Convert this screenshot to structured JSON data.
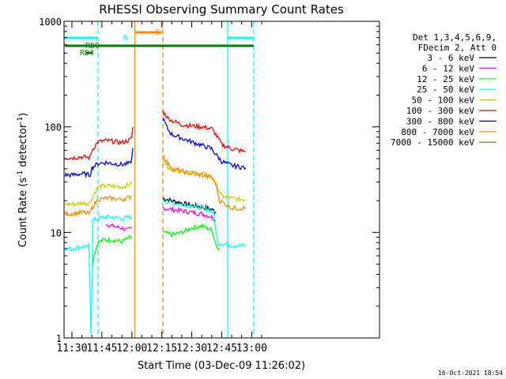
{
  "chart_data": {
    "type": "line",
    "title": "RHESSI Observing Summary Count Rates",
    "xlabel": "Start Time (03-Dec-09 11:26:02)",
    "ylabel": "Count Rate (s⁻¹ detector⁻¹)",
    "ylabel_parts": [
      "Count Rate (s",
      "-1",
      " detector",
      "-1",
      ")"
    ],
    "yscale": "log",
    "xlim": [
      26.03,
      184.0
    ],
    "ylim": [
      1,
      1000
    ],
    "x_units": "minutes after 11:00 UT",
    "x_tick_labels": [
      "11:30",
      "11:45",
      "12:00",
      "12:15",
      "12:30",
      "12:45",
      "13:00"
    ],
    "x_ticks": [
      30,
      45,
      60,
      75,
      90,
      105,
      120
    ],
    "y_tick_labels": [
      "1",
      "10",
      "100",
      "1000"
    ],
    "y_ticks": [
      1,
      10,
      100,
      1000
    ],
    "timestamp": "16-Oct-2021 18:54",
    "legend": {
      "header": [
        "Det 1,3,4,5,6,9,",
        "FDecim 2, Att 0"
      ],
      "placement": "right, outside"
    },
    "series": [
      {
        "name": "3 - 6 keV",
        "color": "#000000",
        "segments": [
          [
            [
              75.5,
              21
            ],
            [
              80,
              20
            ],
            [
              85,
              19
            ],
            [
              90,
              18
            ],
            [
              95,
              17.5
            ],
            [
              100,
              16.5
            ],
            [
              102,
              15.5
            ]
          ]
        ]
      },
      {
        "name": "6 - 12 keV",
        "color": "#ff00ff",
        "segments": [
          [
            [
              47,
              12
            ],
            [
              50,
              11.5
            ],
            [
              55,
              11
            ],
            [
              58,
              10.5
            ],
            [
              60,
              11
            ]
          ],
          [
            [
              75.5,
              17
            ],
            [
              80,
              16.5
            ],
            [
              85,
              16
            ],
            [
              90,
              15.5
            ],
            [
              95,
              15
            ],
            [
              100,
              14
            ],
            [
              102,
              13
            ]
          ]
        ]
      },
      {
        "name": "12 - 25 keV",
        "color": "#00ff00",
        "segments": [
          [
            [
              40,
              4.5
            ],
            [
              41,
              6
            ],
            [
              43,
              8
            ],
            [
              46,
              8.5
            ],
            [
              50,
              8.5
            ],
            [
              55,
              8.2
            ],
            [
              60,
              9
            ]
          ],
          [
            [
              75.5,
              10
            ],
            [
              80,
              9.5
            ],
            [
              85,
              10
            ],
            [
              90,
              11
            ],
            [
              95,
              11.5
            ],
            [
              100,
              10.5
            ],
            [
              102,
              8
            ],
            [
              103,
              7
            ],
            [
              104,
              7
            ]
          ]
        ]
      },
      {
        "name": "25 - 50 keV",
        "color": "#00ffff",
        "segments": [
          [
            [
              26.5,
              7
            ],
            [
              30,
              7
            ],
            [
              35,
              7.3
            ],
            [
              38.5,
              7.5
            ],
            [
              39,
              3
            ],
            [
              39.5,
              1.1
            ],
            [
              40,
              3
            ],
            [
              40.5,
              13
            ],
            [
              43,
              13.5
            ],
            [
              47,
              14
            ],
            [
              50,
              14
            ],
            [
              55,
              13.5
            ],
            [
              60,
              14
            ]
          ],
          [
            [
              75.5,
              20
            ],
            [
              80,
              19
            ],
            [
              85,
              18.5
            ],
            [
              90,
              18
            ],
            [
              95,
              17
            ],
            [
              100,
              16
            ],
            [
              101,
              15
            ],
            [
              102,
              11
            ],
            [
              103,
              8
            ],
            [
              110,
              7.5
            ],
            [
              117,
              7.5
            ]
          ]
        ]
      },
      {
        "name": "50 - 100 keV",
        "color": "#cccc00",
        "segments": [
          [
            [
              26.5,
              18.5
            ],
            [
              30,
              18.5
            ],
            [
              35,
              19
            ],
            [
              39,
              19
            ],
            [
              40,
              21
            ],
            [
              43,
              27
            ],
            [
              47,
              27.5
            ],
            [
              50,
              27.5
            ],
            [
              55,
              27
            ],
            [
              60,
              29
            ]
          ],
          [
            [
              75.5,
              48
            ],
            [
              78,
              42
            ],
            [
              80,
              40
            ],
            [
              85,
              38
            ],
            [
              90,
              37
            ],
            [
              95,
              36
            ],
            [
              100,
              34
            ],
            [
              102,
              29
            ],
            [
              105,
              22
            ],
            [
              110,
              21
            ],
            [
              117,
              20.5
            ]
          ]
        ]
      },
      {
        "name": "100 - 300 keV",
        "color": "#ff0000",
        "segments": [
          [
            [
              26.5,
              51
            ],
            [
              30,
              51
            ],
            [
              35,
              52
            ],
            [
              39,
              51
            ],
            [
              40,
              60
            ],
            [
              43,
              72
            ],
            [
              47,
              74
            ],
            [
              50,
              73
            ],
            [
              55,
              71
            ],
            [
              59,
              75
            ],
            [
              60,
              80
            ],
            [
              60.5,
              100
            ]
          ],
          [
            [
              75.5,
              140
            ],
            [
              78,
              122
            ],
            [
              80,
              115
            ],
            [
              85,
              105
            ],
            [
              90,
              102
            ],
            [
              95,
              100
            ],
            [
              100,
              96
            ],
            [
              102,
              85
            ],
            [
              105,
              68
            ],
            [
              110,
              62
            ],
            [
              117,
              58
            ]
          ]
        ]
      },
      {
        "name": "300 - 800 keV",
        "color": "#0000ff",
        "segments": [
          [
            [
              26.5,
              35
            ],
            [
              30,
              35
            ],
            [
              35,
              36
            ],
            [
              39,
              35
            ],
            [
              40,
              41
            ],
            [
              43,
              45
            ],
            [
              47,
              46
            ],
            [
              50,
              45
            ],
            [
              55,
              44
            ],
            [
              59,
              45
            ],
            [
              60,
              50
            ],
            [
              60.5,
              63
            ]
          ],
          [
            [
              75.5,
              120
            ],
            [
              78,
              95
            ],
            [
              80,
              85
            ],
            [
              85,
              78
            ],
            [
              90,
              72
            ],
            [
              95,
              67
            ],
            [
              100,
              62
            ],
            [
              102,
              55
            ],
            [
              105,
              47
            ],
            [
              110,
              43
            ],
            [
              117,
              41
            ]
          ]
        ]
      },
      {
        "name": "800 - 7000 keV",
        "color": "#ff8800",
        "segments": [
          [
            [
              26.5,
              15
            ],
            [
              30,
              15
            ],
            [
              35,
              15.5
            ],
            [
              39,
              15
            ],
            [
              40,
              17
            ],
            [
              43,
              20.5
            ],
            [
              47,
              21
            ],
            [
              50,
              21
            ],
            [
              55,
              20.5
            ],
            [
              60,
              22
            ]
          ],
          [
            [
              75.5,
              55
            ],
            [
              78,
              45
            ],
            [
              80,
              40
            ],
            [
              85,
              38
            ],
            [
              90,
              36
            ],
            [
              95,
              35
            ],
            [
              100,
              33
            ],
            [
              102,
              29
            ],
            [
              104,
              20
            ],
            [
              110,
              17
            ],
            [
              117,
              17
            ]
          ]
        ]
      },
      {
        "name": "7000 - 15000 keV",
        "color": "#886600",
        "segments": []
      }
    ],
    "annotations": [
      {
        "label": "N",
        "color": "#00ffff"
      },
      {
        "label": "S",
        "color": "#ff8800"
      },
      {
        "label": "RD0",
        "color": "#008000"
      },
      {
        "label": "RD4",
        "color": "#008000"
      }
    ],
    "flag_bars": [
      {
        "color": "#00ffff",
        "x": [
          26.5,
          43
        ]
      },
      {
        "color": "#00ffff",
        "x": [
          108,
          121
        ]
      },
      {
        "color": "#008000",
        "x": [
          26.5,
          121
        ]
      },
      {
        "color": "#ff8800",
        "x": [
          62,
          75
        ]
      },
      {
        "color": "#008000",
        "x": [
          37,
          40
        ],
        "short": true
      }
    ],
    "vertical_lines": [
      {
        "x": 43,
        "color": "#00ffff",
        "style": "dashed"
      },
      {
        "x": 61.5,
        "color": "#ff8800",
        "style": "solid"
      },
      {
        "x": 75.5,
        "color": "#ff8800",
        "style": "dashed"
      },
      {
        "x": 108,
        "color": "#00ffff",
        "style": "solid"
      },
      {
        "x": 121,
        "color": "#00ffff",
        "style": "dashed"
      }
    ]
  }
}
